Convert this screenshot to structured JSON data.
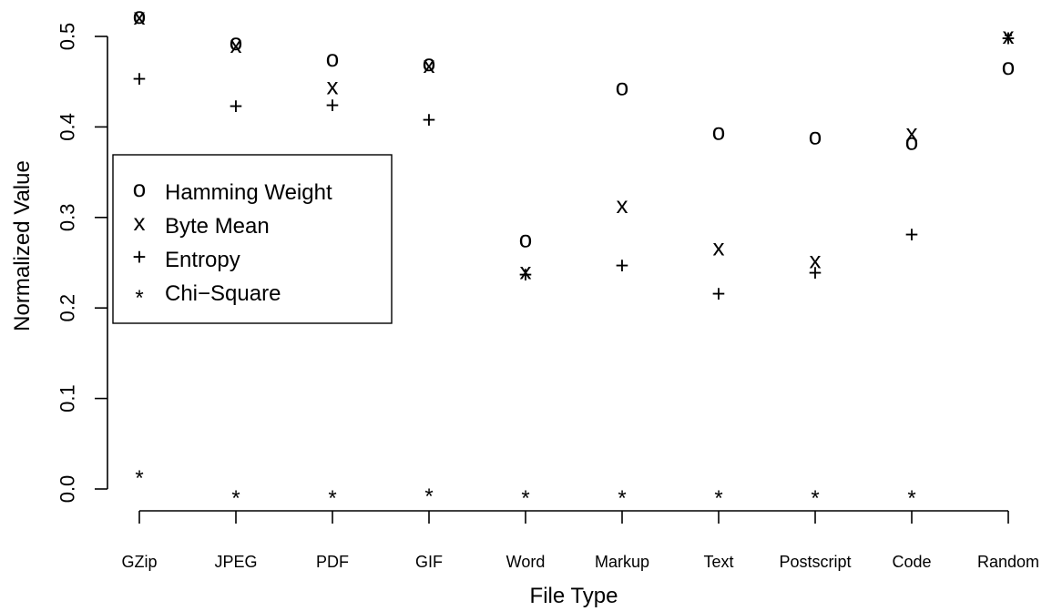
{
  "chart_data": {
    "type": "scatter",
    "xlabel": "File Type",
    "ylabel": "Normalized Value",
    "categories": [
      "GZip",
      "JPEG",
      "PDF",
      "GIF",
      "Word",
      "Markup",
      "Text",
      "Postscript",
      "Code",
      "Random"
    ],
    "ylim": [
      0.0,
      0.5
    ],
    "yticks": [
      "0.0",
      "0.1",
      "0.2",
      "0.3",
      "0.4",
      "0.5"
    ],
    "legend_position": "left",
    "series": [
      {
        "name": "Hamming Weight",
        "symbol": "o",
        "values": [
          0.522,
          0.493,
          0.475,
          0.47,
          0.275,
          0.443,
          0.394,
          0.389,
          0.383,
          0.466
        ]
      },
      {
        "name": "Byte Mean",
        "symbol": "x",
        "values": [
          0.521,
          0.49,
          0.444,
          0.468,
          0.24,
          0.313,
          0.266,
          0.252,
          0.393,
          0.5
        ]
      },
      {
        "name": "Entropy",
        "symbol": "+",
        "values": [
          0.453,
          0.423,
          0.424,
          0.408,
          0.237,
          0.247,
          0.216,
          0.239,
          0.281,
          0.498
        ]
      },
      {
        "name": "Chi−Square",
        "symbol": "*",
        "values": [
          0.02,
          -0.002,
          -0.002,
          0.0,
          -0.002,
          -0.002,
          -0.002,
          -0.002,
          -0.002,
          0.504
        ]
      }
    ]
  }
}
